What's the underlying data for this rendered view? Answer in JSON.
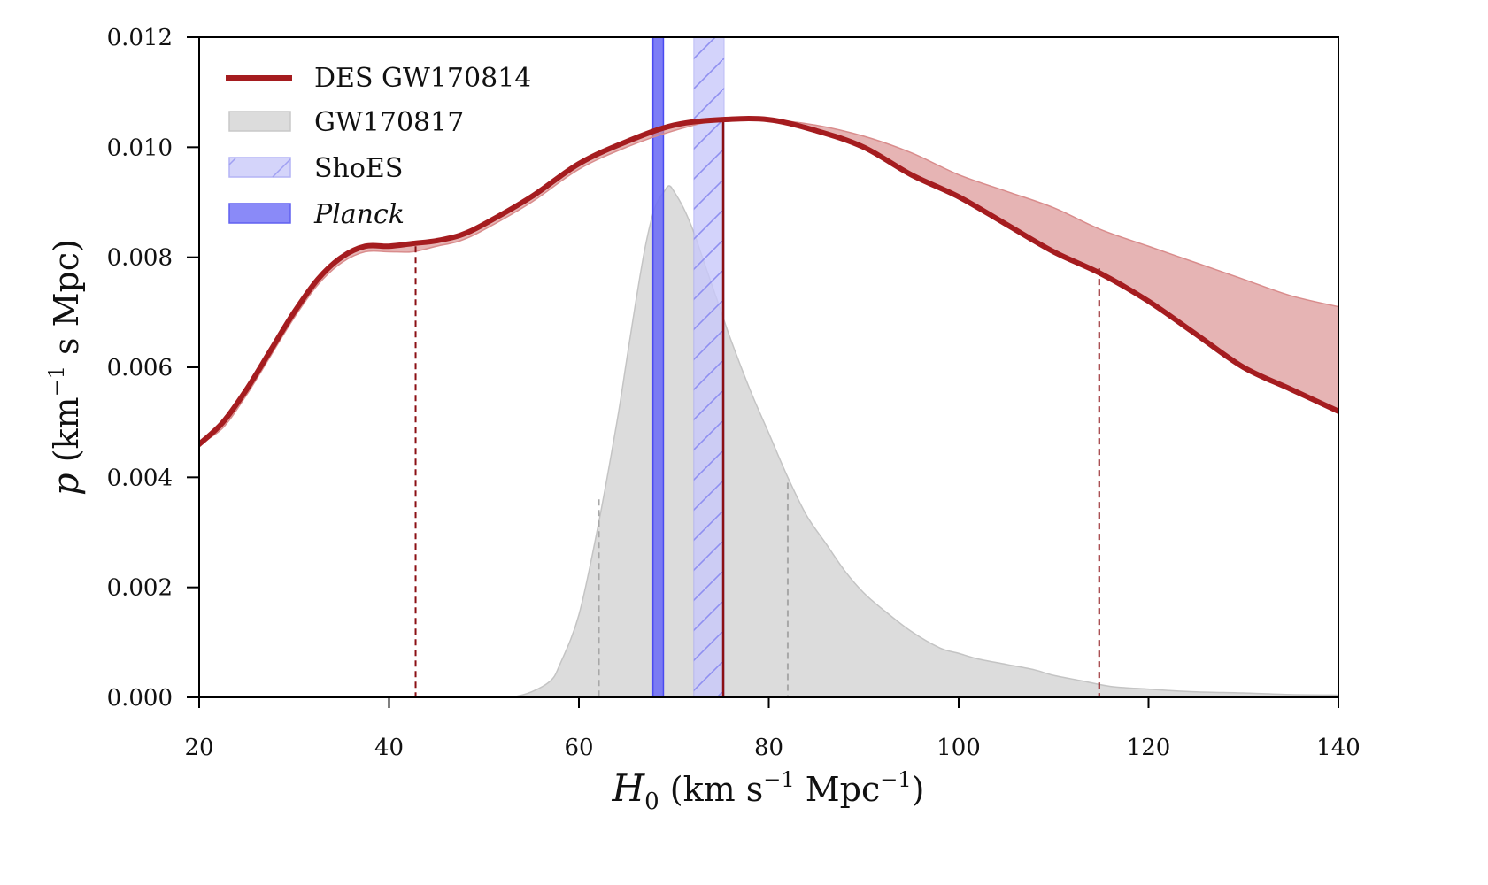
{
  "chart_data": {
    "type": "line",
    "title": "",
    "xlabel": "H_0 (km s^-1 Mpc^-1)",
    "xlabel_parts": {
      "main": "H",
      "sub": "0",
      "unit_a": " (km s",
      "sup_a": "−1",
      "unit_b": " Mpc",
      "sup_b": "−1",
      "close": ")"
    },
    "ylabel": "p (km^-1 s Mpc)",
    "ylabel_parts": {
      "main": "p",
      "unit_a": " (km",
      "sup_a": "−1",
      "unit_b": " s Mpc)"
    },
    "xlim": [
      20,
      140
    ],
    "ylim": [
      0,
      0.012
    ],
    "xticks": [
      20,
      40,
      60,
      80,
      100,
      120,
      140
    ],
    "xtick_labels": [
      "20",
      "40",
      "60",
      "80",
      "100",
      "120",
      "140"
    ],
    "yticks": [
      0,
      0.002,
      0.004,
      0.006,
      0.008,
      0.01,
      0.012
    ],
    "ytick_labels": [
      "0.000",
      "0.002",
      "0.004",
      "0.006",
      "0.008",
      "0.010",
      "0.012"
    ],
    "grid": false,
    "legend_position": "top-left",
    "legend": [
      {
        "label": "DES GW170814",
        "italic": false,
        "kind": "line"
      },
      {
        "label": "GW170817",
        "italic": false,
        "kind": "fill-gray"
      },
      {
        "label": "ShoES",
        "italic": false,
        "kind": "fill-hatch"
      },
      {
        "label": "Planck",
        "italic": true,
        "kind": "fill-blue"
      }
    ],
    "colors": {
      "des": "#a51c1f",
      "des_band": "#d98c8c",
      "gw170817": "#dcdcdc",
      "gw170817_edge": "#c4c4c4",
      "shoes": "#c8c8fa",
      "shoes_edge": "#9a9af0",
      "planck": "#6f6ff5",
      "planck_edge": "#4a4af0"
    },
    "series": [
      {
        "name": "DES GW170814",
        "x": [
          20,
          22.5,
          25,
          27.5,
          30,
          32.5,
          35,
          37.5,
          40,
          42.5,
          45,
          47.5,
          50,
          55,
          60,
          65,
          70,
          75,
          80,
          85,
          90,
          95,
          100,
          105,
          110,
          115,
          120,
          125,
          130,
          135,
          140
        ],
        "y": [
          0.0046,
          0.005,
          0.0056,
          0.0063,
          0.007,
          0.0076,
          0.008,
          0.0082,
          0.0082,
          0.00825,
          0.0083,
          0.0084,
          0.0086,
          0.0091,
          0.0097,
          0.0101,
          0.0104,
          0.0105,
          0.0105,
          0.0103,
          0.01,
          0.0095,
          0.0091,
          0.0086,
          0.0081,
          0.0077,
          0.0072,
          0.0066,
          0.006,
          0.0056,
          0.0052
        ]
      },
      {
        "name": "DES GW170814 band (upper)",
        "x": [
          20,
          22.5,
          25,
          27.5,
          30,
          32.5,
          35,
          37.5,
          40,
          42.5,
          45,
          47.5,
          50,
          55,
          60,
          65,
          70,
          75,
          80,
          85,
          90,
          95,
          100,
          105,
          110,
          115,
          120,
          125,
          130,
          135,
          140
        ],
        "y": [
          0.0046,
          0.005,
          0.0056,
          0.0063,
          0.007,
          0.0076,
          0.008,
          0.0082,
          0.0082,
          0.00825,
          0.0083,
          0.0084,
          0.0086,
          0.0091,
          0.0097,
          0.0101,
          0.0104,
          0.0105,
          0.0105,
          0.0104,
          0.0102,
          0.0099,
          0.0095,
          0.0092,
          0.0089,
          0.0085,
          0.0082,
          0.0079,
          0.0076,
          0.0073,
          0.0071
        ]
      },
      {
        "name": "DES GW170814 band (lower)",
        "x": [
          20,
          22.5,
          25,
          27.5,
          30,
          32.5,
          35,
          37.5,
          40,
          42.5,
          45,
          47.5,
          50,
          55,
          60,
          65,
          70,
          75
        ],
        "y": [
          0.0046,
          0.0049,
          0.0055,
          0.0062,
          0.0069,
          0.0075,
          0.0079,
          0.0081,
          0.0081,
          0.0081,
          0.0082,
          0.0083,
          0.0085,
          0.009,
          0.0096,
          0.01,
          0.0103,
          0.0105
        ]
      },
      {
        "name": "GW170817",
        "x": [
          50,
          53,
          55,
          57,
          58,
          60,
          62,
          64,
          65,
          66,
          67,
          68,
          69,
          69.5,
          70,
          71,
          72,
          73,
          74,
          75,
          76,
          78,
          80,
          82,
          84,
          86,
          88,
          90,
          92,
          95,
          98,
          100,
          102,
          105,
          108,
          110,
          113,
          116,
          120,
          125,
          130,
          135,
          140
        ],
        "y": [
          0,
          1e-05,
          0.0001,
          0.0003,
          0.0006,
          0.0015,
          0.0031,
          0.005,
          0.0061,
          0.0072,
          0.0082,
          0.0089,
          0.0092,
          0.0093,
          0.0092,
          0.0089,
          0.0085,
          0.008,
          0.0075,
          0.007,
          0.0065,
          0.0056,
          0.0048,
          0.004,
          0.0033,
          0.0028,
          0.0023,
          0.0019,
          0.0016,
          0.0012,
          0.0009,
          0.0008,
          0.0007,
          0.0006,
          0.0005,
          0.0004,
          0.0003,
          0.0002,
          0.00015,
          0.0001,
          8e-05,
          5e-05,
          4e-05
        ]
      }
    ],
    "bands": [
      {
        "name": "Planck",
        "x_range": [
          67.8,
          68.9
        ]
      },
      {
        "name": "ShoES",
        "x_range": [
          72.1,
          75.3
        ]
      }
    ],
    "vlines": [
      {
        "name": "DES median",
        "x": 75.2,
        "y_top": 0.0105,
        "style": "solid"
      },
      {
        "name": "DES lower 68%",
        "x": 42.8,
        "y_top": 0.0082,
        "style": "dashed"
      },
      {
        "name": "DES upper 68%",
        "x": 114.8,
        "y_top": 0.0078,
        "style": "dashed"
      },
      {
        "name": "GW170817 lower 68%",
        "x": 62.1,
        "y_top": 0.0036,
        "style": "dashed-gray"
      },
      {
        "name": "GW170817 upper 68%",
        "x": 82.0,
        "y_top": 0.0039,
        "style": "dashed-gray"
      }
    ]
  }
}
